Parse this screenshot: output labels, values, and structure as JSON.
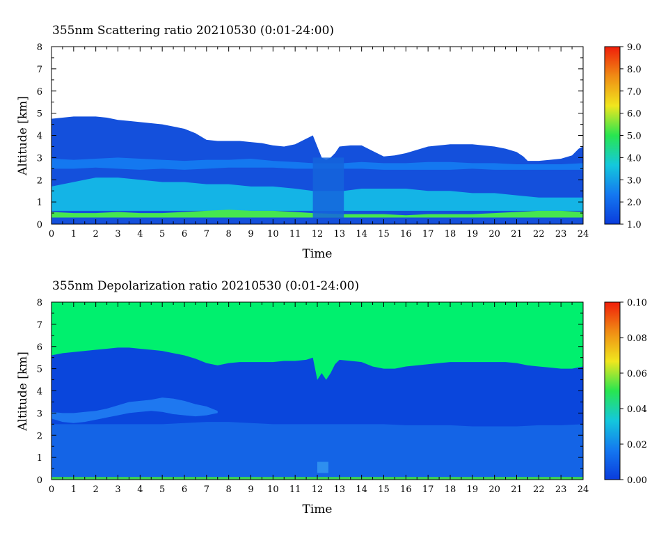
{
  "chart_data": [
    {
      "type": "heatmap",
      "title": "355nm Scattering ratio  20210530 (0:01-24:00)",
      "xlabel": "Time",
      "ylabel": "Altitude [km]",
      "xlim": [
        0,
        24
      ],
      "ylim": [
        0,
        8
      ],
      "x_ticks": [
        "0",
        "1",
        "2",
        "3",
        "4",
        "5",
        "6",
        "7",
        "8",
        "9",
        "10",
        "11",
        "12",
        "13",
        "14",
        "15",
        "16",
        "17",
        "18",
        "19",
        "20",
        "21",
        "22",
        "23",
        "24"
      ],
      "y_ticks": [
        "0",
        "1",
        "2",
        "3",
        "4",
        "5",
        "6",
        "7",
        "8"
      ],
      "colorbar": {
        "range": [
          1.0,
          9.0
        ],
        "ticks": [
          "1.0",
          "2.0",
          "3.0",
          "4.0",
          "5.0",
          "6.0",
          "7.0",
          "8.0",
          "9.0"
        ],
        "colors": [
          "#0a3cdc",
          "#1478f0",
          "#14c8dc",
          "#28e650",
          "#f0e61e",
          "#f08c14",
          "#f01e0a"
        ]
      },
      "background_color": "#ffffff",
      "layers": [
        {
          "name": "signal-top-km",
          "color": "#1450dc",
          "x": [
            0,
            0.5,
            1,
            1.5,
            2,
            2.5,
            3,
            3.5,
            4,
            4.5,
            5,
            5.5,
            6,
            6.5,
            7,
            7.5,
            8,
            8.5,
            9,
            9.5,
            10,
            10.5,
            11,
            11.5,
            11.8,
            12,
            12.2,
            12.4,
            12.6,
            12.8,
            13,
            13.5,
            14,
            14.5,
            15,
            15.5,
            16,
            16.5,
            17,
            17.5,
            18,
            18.5,
            19,
            19.5,
            20,
            20.5,
            21,
            21.3,
            21.5,
            22,
            22.5,
            23,
            23.5,
            23.8,
            24
          ],
          "y": [
            4.75,
            4.8,
            4.85,
            4.85,
            4.85,
            4.8,
            4.7,
            4.65,
            4.6,
            4.55,
            4.5,
            4.4,
            4.3,
            4.1,
            3.8,
            3.75,
            3.75,
            3.75,
            3.7,
            3.65,
            3.55,
            3.5,
            3.6,
            3.85,
            4.0,
            3.5,
            3.0,
            2.9,
            3.0,
            3.2,
            3.5,
            3.55,
            3.55,
            3.3,
            3.05,
            3.1,
            3.2,
            3.35,
            3.5,
            3.55,
            3.6,
            3.6,
            3.6,
            3.55,
            3.5,
            3.4,
            3.25,
            3.05,
            2.85,
            2.85,
            2.9,
            2.95,
            3.1,
            3.4,
            3.5
          ]
        },
        {
          "name": "enhanced-layer-2.5-3km",
          "color": "#1478f0",
          "x": [
            0,
            1,
            2,
            3,
            4,
            5,
            6,
            7,
            8,
            9,
            10,
            11,
            11.8,
            13.2,
            14,
            15,
            16,
            17,
            18,
            19,
            20,
            21,
            22,
            23,
            24
          ],
          "y_bottom": [
            2.5,
            2.5,
            2.55,
            2.5,
            2.45,
            2.5,
            2.45,
            2.5,
            2.55,
            2.55,
            2.55,
            2.5,
            2.5,
            2.5,
            2.5,
            2.45,
            2.45,
            2.45,
            2.45,
            2.5,
            2.45,
            2.45,
            2.45,
            2.45,
            2.45
          ],
          "y_top": [
            2.95,
            2.9,
            2.95,
            3.0,
            2.95,
            2.9,
            2.85,
            2.9,
            2.9,
            2.95,
            2.85,
            2.8,
            2.75,
            2.75,
            2.8,
            2.75,
            2.75,
            2.8,
            2.8,
            2.75,
            2.75,
            2.7,
            2.7,
            2.7,
            2.75
          ]
        },
        {
          "name": "aerosol-layer-1-2km",
          "color": "#14b4e6",
          "x": [
            0,
            1,
            2,
            3,
            4,
            5,
            6,
            7,
            8,
            9,
            10,
            11,
            11.8,
            13.2,
            14,
            15,
            16,
            17,
            18,
            19,
            20,
            21,
            22,
            23,
            24
          ],
          "y_bottom": [
            0.6,
            0.6,
            0.6,
            0.6,
            0.6,
            0.6,
            0.6,
            0.6,
            0.6,
            0.6,
            0.6,
            0.6,
            0.6,
            0.6,
            0.6,
            0.6,
            0.6,
            0.6,
            0.6,
            0.6,
            0.6,
            0.6,
            0.6,
            0.6,
            0.6
          ],
          "y_top": [
            1.7,
            1.9,
            2.1,
            2.1,
            2.0,
            1.9,
            1.9,
            1.8,
            1.8,
            1.7,
            1.7,
            1.6,
            1.5,
            1.5,
            1.6,
            1.6,
            1.6,
            1.5,
            1.5,
            1.4,
            1.4,
            1.3,
            1.2,
            1.2,
            1.2
          ]
        },
        {
          "name": "boundary-layer-0.3-0.6km",
          "color": "#46e650",
          "x": [
            0,
            1,
            2,
            3,
            4,
            5,
            6,
            7,
            8,
            9,
            10,
            11,
            11.8,
            13.2,
            14,
            15,
            16,
            17,
            18,
            19,
            20,
            21,
            22,
            23,
            24
          ],
          "y_bottom": [
            0.3,
            0.3,
            0.3,
            0.3,
            0.3,
            0.3,
            0.3,
            0.3,
            0.3,
            0.3,
            0.3,
            0.3,
            0.3,
            0.3,
            0.3,
            0.3,
            0.3,
            0.3,
            0.3,
            0.3,
            0.3,
            0.3,
            0.3,
            0.3,
            0.3
          ],
          "y_top": [
            0.55,
            0.5,
            0.5,
            0.55,
            0.5,
            0.5,
            0.55,
            0.6,
            0.65,
            0.6,
            0.6,
            0.55,
            0.5,
            0.45,
            0.45,
            0.45,
            0.4,
            0.45,
            0.45,
            0.45,
            0.5,
            0.55,
            0.6,
            0.6,
            0.55
          ]
        }
      ],
      "low_cloud_event": {
        "x": [
          11.8,
          13.2
        ],
        "color": "#1464dc"
      }
    },
    {
      "type": "heatmap",
      "title": "355nm Depolarization ratio  20210530 (0:01-24:00)",
      "xlabel": "Time",
      "ylabel": "Altitude [km]",
      "xlim": [
        0,
        24
      ],
      "ylim": [
        0,
        8
      ],
      "x_ticks": [
        "0",
        "1",
        "2",
        "3",
        "4",
        "5",
        "6",
        "7",
        "8",
        "9",
        "10",
        "11",
        "12",
        "13",
        "14",
        "15",
        "16",
        "17",
        "18",
        "19",
        "20",
        "21",
        "22",
        "23",
        "24"
      ],
      "y_ticks": [
        "0",
        "1",
        "2",
        "3",
        "4",
        "5",
        "6",
        "7",
        "8"
      ],
      "colorbar": {
        "range": [
          0.0,
          0.1
        ],
        "ticks": [
          "0.00",
          "0.02",
          "0.04",
          "0.06",
          "0.08",
          "0.10"
        ],
        "colors": [
          "#0a3cdc",
          "#1478f0",
          "#14c8dc",
          "#28e650",
          "#f0e61e",
          "#f08c14",
          "#f01e0a"
        ]
      },
      "background_color": "#00f06e",
      "layers": [
        {
          "name": "signal-top-km",
          "color": "#0a46dc",
          "x": [
            0,
            0.5,
            1,
            1.5,
            2,
            2.5,
            3,
            3.5,
            4,
            4.5,
            5,
            5.5,
            6,
            6.5,
            7,
            7.5,
            8,
            8.5,
            9,
            9.5,
            10,
            10.5,
            11,
            11.5,
            11.8,
            12,
            12.2,
            12.4,
            12.6,
            12.8,
            13,
            13.5,
            14,
            14.5,
            15,
            15.5,
            16,
            16.5,
            17,
            17.5,
            18,
            18.5,
            19,
            19.5,
            20,
            20.5,
            21,
            21.5,
            22,
            22.5,
            23,
            23.5,
            24
          ],
          "y": [
            5.6,
            5.7,
            5.75,
            5.8,
            5.85,
            5.9,
            5.95,
            5.95,
            5.9,
            5.85,
            5.8,
            5.7,
            5.6,
            5.45,
            5.25,
            5.15,
            5.25,
            5.3,
            5.3,
            5.3,
            5.3,
            5.35,
            5.35,
            5.4,
            5.5,
            4.5,
            4.8,
            4.5,
            4.8,
            5.2,
            5.4,
            5.35,
            5.3,
            5.1,
            5.0,
            5.0,
            5.1,
            5.15,
            5.2,
            5.25,
            5.3,
            5.3,
            5.3,
            5.3,
            5.3,
            5.3,
            5.25,
            5.15,
            5.1,
            5.05,
            5.0,
            5.0,
            5.1
          ]
        },
        {
          "name": "lower-layer-below-2.5km",
          "color": "#1464e6",
          "x": [
            0,
            1,
            2,
            3,
            4,
            5,
            6,
            7,
            8,
            9,
            10,
            11,
            12,
            13,
            14,
            15,
            16,
            17,
            18,
            19,
            20,
            21,
            22,
            23,
            24
          ],
          "y_bottom": [
            0.1,
            0.1,
            0.1,
            0.1,
            0.1,
            0.1,
            0.1,
            0.1,
            0.1,
            0.1,
            0.1,
            0.1,
            0.1,
            0.1,
            0.1,
            0.1,
            0.1,
            0.1,
            0.1,
            0.1,
            0.1,
            0.1,
            0.1,
            0.1,
            0.1
          ],
          "y_top": [
            2.5,
            2.5,
            2.5,
            2.5,
            2.5,
            2.5,
            2.55,
            2.6,
            2.6,
            2.55,
            2.5,
            2.5,
            2.5,
            2.5,
            2.5,
            2.5,
            2.45,
            2.45,
            2.45,
            2.4,
            2.4,
            2.4,
            2.45,
            2.45,
            2.5
          ]
        },
        {
          "name": "elevated-layer-2.5-3.5km",
          "color": "#1e78f0",
          "x": [
            0,
            0.5,
            1,
            1.5,
            2,
            2.5,
            3,
            3.5,
            4,
            4.5,
            5,
            5.5,
            6,
            6.5,
            7,
            7.5
          ],
          "y_bottom": [
            2.75,
            2.6,
            2.55,
            2.6,
            2.7,
            2.8,
            2.9,
            3.0,
            3.05,
            3.1,
            3.05,
            2.95,
            2.9,
            2.85,
            2.9,
            3.0
          ],
          "y_top": [
            3.05,
            3.0,
            3.0,
            3.05,
            3.1,
            3.2,
            3.35,
            3.5,
            3.55,
            3.6,
            3.7,
            3.65,
            3.55,
            3.4,
            3.3,
            3.1
          ]
        },
        {
          "name": "near-surface-layer-0-0.1km",
          "color": "#3cd250",
          "x": [
            0,
            24
          ],
          "y_bottom": [
            0.0,
            0.0
          ],
          "y_top": [
            0.12,
            0.12
          ]
        }
      ],
      "low_cloud_event": {
        "x": [
          12.0,
          12.5
        ],
        "color": "#3296f0"
      }
    }
  ]
}
